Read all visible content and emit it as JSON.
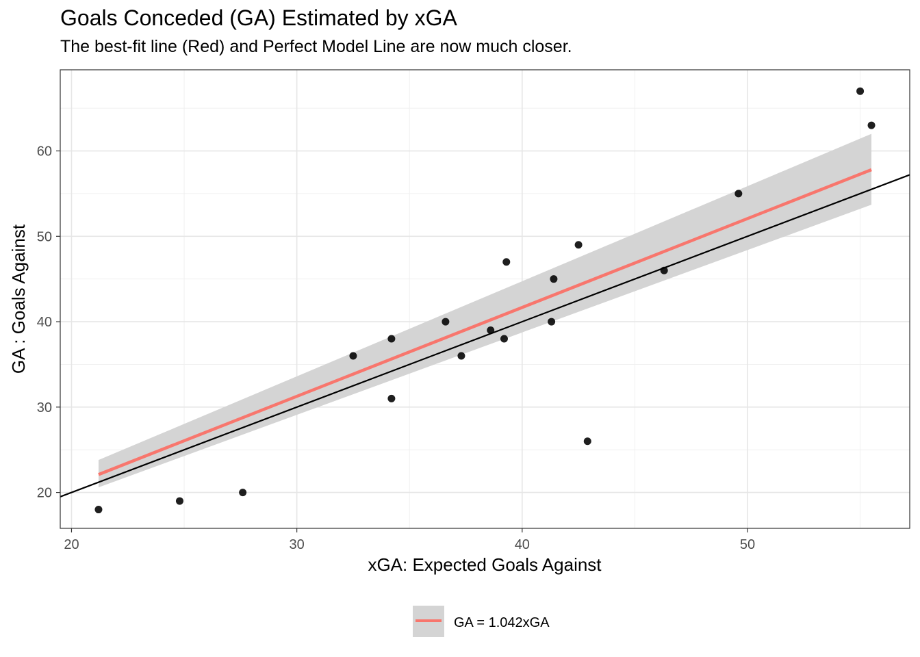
{
  "chart_data": {
    "type": "scatter",
    "title": "Goals Conceded (GA) Estimated by xGA",
    "subtitle": "The best-fit line (Red) and Perfect Model Line are now much closer.",
    "xlabel": "xGA: Expected Goals Against",
    "ylabel": "GA : Goals Against",
    "xlim": [
      19.5,
      57.2
    ],
    "ylim": [
      15.8,
      69.5
    ],
    "x_ticks": [
      20,
      30,
      40,
      50
    ],
    "y_ticks": [
      20,
      30,
      40,
      50,
      60
    ],
    "x_tick_labels": [
      "20",
      "30",
      "40",
      "50"
    ],
    "y_tick_labels": [
      "20",
      "30",
      "40",
      "50",
      "60"
    ],
    "grid": true,
    "legend_position": "bottom",
    "points": [
      {
        "x": 21.2,
        "y": 18
      },
      {
        "x": 24.8,
        "y": 19
      },
      {
        "x": 27.6,
        "y": 20
      },
      {
        "x": 32.5,
        "y": 36
      },
      {
        "x": 34.2,
        "y": 38
      },
      {
        "x": 34.2,
        "y": 31
      },
      {
        "x": 36.6,
        "y": 40
      },
      {
        "x": 37.3,
        "y": 36
      },
      {
        "x": 38.6,
        "y": 39
      },
      {
        "x": 39.2,
        "y": 38
      },
      {
        "x": 39.3,
        "y": 47
      },
      {
        "x": 41.3,
        "y": 40
      },
      {
        "x": 41.4,
        "y": 45
      },
      {
        "x": 42.5,
        "y": 49
      },
      {
        "x": 42.9,
        "y": 26
      },
      {
        "x": 46.3,
        "y": 46
      },
      {
        "x": 49.6,
        "y": 55
      },
      {
        "x": 55.0,
        "y": 67
      },
      {
        "x": 55.5,
        "y": 63
      }
    ],
    "fit_line": {
      "name": "GA = 1.042xGA",
      "x": [
        21.2,
        55.5
      ],
      "y": [
        22.1,
        57.8
      ],
      "ci_lower": [
        20.6,
        53.7
      ],
      "ci_upper": [
        23.8,
        62.0
      ],
      "color": "#F8766D"
    },
    "ci_color": "#d4d4d4",
    "reference_line": {
      "slope": 1,
      "intercept": 0,
      "color": "#000000"
    },
    "point_color": "#000000"
  }
}
